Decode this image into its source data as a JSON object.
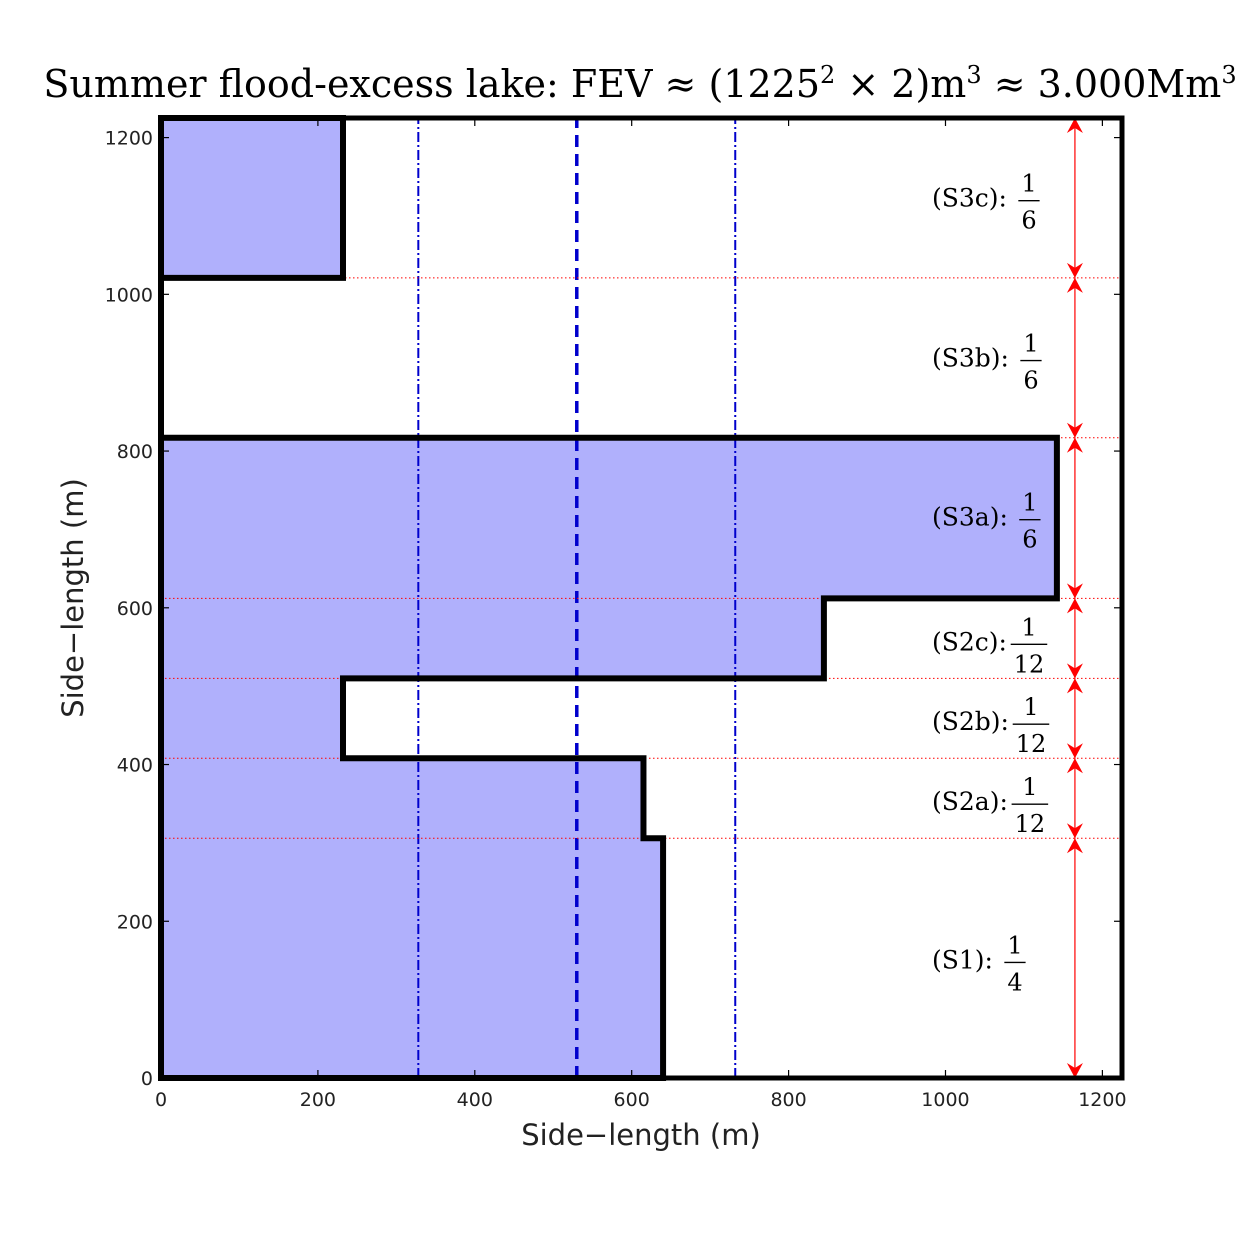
{
  "chart_data": {
    "type": "area",
    "title": {
      "main": "Summer flood-excess lake: FEV ≈ (1225",
      "sup1": "2",
      "mid": " × 2)m",
      "sup2": "3",
      "mid2": " ≈ 3.000Mm",
      "sup3": "3"
    },
    "xlabel": "Side−length (m)",
    "ylabel": "Side−length (m)",
    "xlim": [
      0,
      1225
    ],
    "ylim": [
      0,
      1225
    ],
    "xticks": [
      0,
      200,
      400,
      600,
      800,
      1000,
      1200
    ],
    "yticks": [
      0,
      200,
      400,
      600,
      800,
      1000,
      1200
    ],
    "fill_color": "#b0b0fc",
    "outline_color": "#000000",
    "lake_outline": [
      [
        0,
        0
      ],
      [
        640,
        0
      ],
      [
        640,
        306
      ],
      [
        615,
        306
      ],
      [
        615,
        408
      ],
      [
        232,
        408
      ],
      [
        232,
        510
      ],
      [
        845,
        510
      ],
      [
        845,
        612
      ],
      [
        1142,
        612
      ],
      [
        1142,
        817
      ],
      [
        0,
        817
      ],
      [
        0,
        1021
      ],
      [
        232,
        1021
      ],
      [
        232,
        1225
      ],
      [
        0,
        1225
      ]
    ],
    "vertical_lines": [
      {
        "x": 328,
        "style": "dashdot",
        "color": "#0000cc"
      },
      {
        "x": 530,
        "style": "dashed",
        "color": "#0000cc"
      },
      {
        "x": 732,
        "style": "dashdot",
        "color": "#0000cc"
      }
    ],
    "boundaries": [
      0,
      306,
      408,
      510,
      612,
      817,
      1021,
      1225
    ],
    "boundary_color": "#ff0000",
    "arrow_x": 1165,
    "segments": [
      {
        "label": "(S1):",
        "num": "1",
        "den": "4",
        "y": 150
      },
      {
        "label": "(S2a):",
        "num": "1",
        "den": "12",
        "y": 352
      },
      {
        "label": "(S2b):",
        "num": "1",
        "den": "12",
        "y": 454
      },
      {
        "label": "(S2c):",
        "num": "1",
        "den": "12",
        "y": 556
      },
      {
        "label": "(S3a):",
        "num": "1",
        "den": "6",
        "y": 715
      },
      {
        "label": "(S3b):",
        "num": "1",
        "den": "6",
        "y": 918
      },
      {
        "label": "(S3c):",
        "num": "1",
        "den": "6",
        "y": 1122
      }
    ]
  }
}
